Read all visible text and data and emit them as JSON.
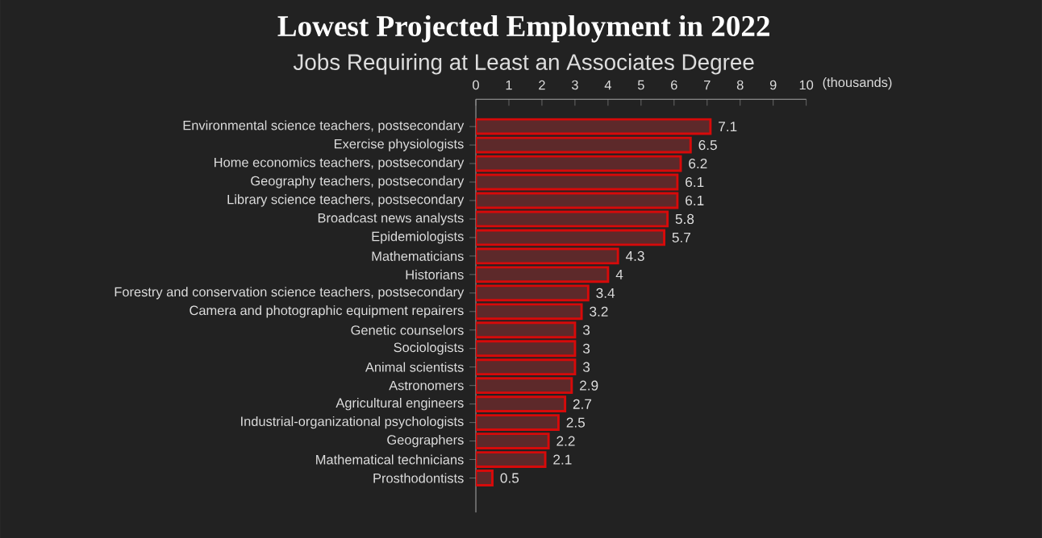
{
  "chart_data": {
    "type": "bar",
    "orientation": "horizontal",
    "title": "Lowest Projected Employment in 2022",
    "subtitle": "Jobs Requiring at Least an Associates Degree",
    "xlabel": "(thousands)",
    "categories": [
      "Environmental science teachers, postsecondary",
      "Exercise physiologists",
      "Home economics teachers, postsecondary",
      "Geography teachers, postsecondary",
      "Library science teachers, postsecondary",
      "Broadcast news analysts",
      "Epidemiologists",
      "Mathematicians",
      "Historians",
      "Forestry and conservation science teachers, postsecondary",
      "Camera and photographic equipment repairers",
      "Genetic counselors",
      "Sociologists",
      "Animal scientists",
      "Astronomers",
      "Agricultural engineers",
      "Industrial-organizational psychologists",
      "Geographers",
      "Mathematical technicians",
      "Prosthodontists"
    ],
    "values": [
      7.1,
      6.5,
      6.2,
      6.1,
      6.1,
      5.8,
      5.7,
      4.3,
      4,
      3.4,
      3.2,
      3,
      3,
      3,
      2.9,
      2.7,
      2.5,
      2.2,
      2.1,
      0.5
    ],
    "color": "#5d292a",
    "xlim": [
      0,
      10
    ],
    "xticks": [
      0,
      1,
      2,
      3,
      4,
      5,
      6,
      7,
      8,
      9,
      10
    ],
    "data_labels": true
  }
}
